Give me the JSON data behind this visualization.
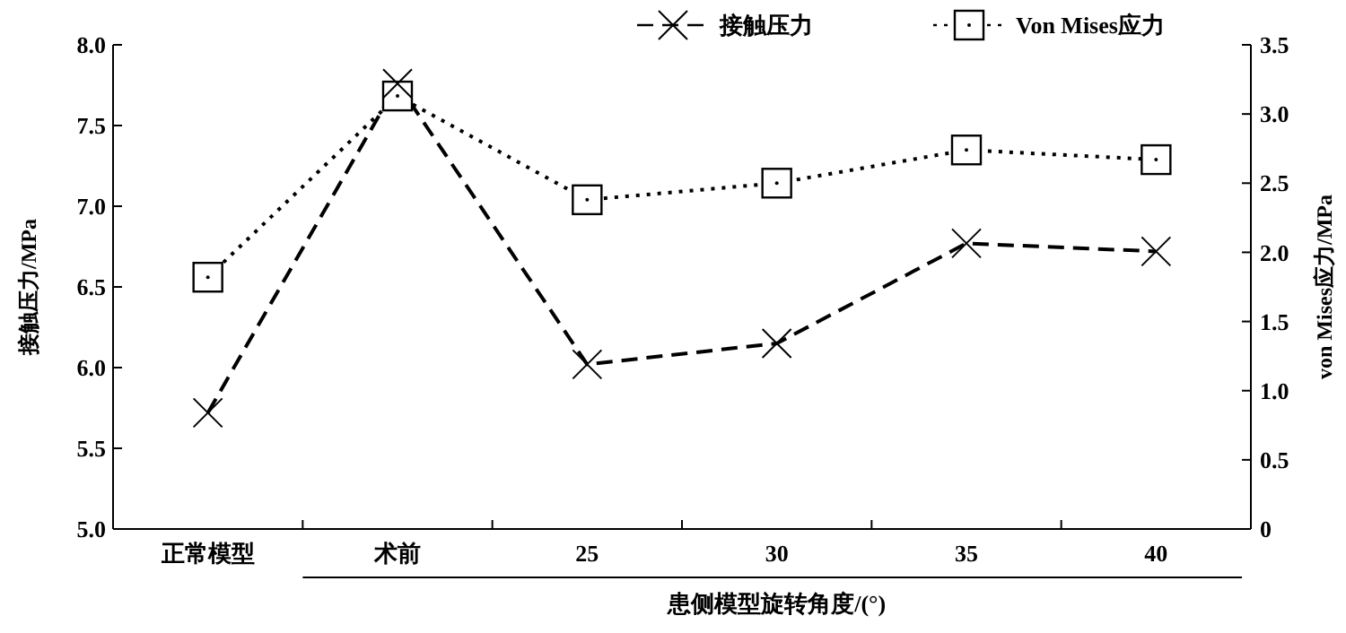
{
  "chart_data": {
    "type": "line",
    "xlabel": "患侧模型旋转角度/(°)",
    "ylabel": "接触压力/MPa",
    "y2label": "von Mises应力/MPa",
    "categories": [
      "正常模型",
      "术前",
      "25",
      "30",
      "35",
      "40"
    ],
    "series": [
      {
        "name": "接触压力",
        "color": "#000000",
        "marker": "cross",
        "line_style": "dashed",
        "values": [
          5.72,
          7.76,
          6.02,
          6.15,
          6.77,
          6.72
        ]
      },
      {
        "name": "Von Mises应力",
        "color": "#000000",
        "marker": "square",
        "line_style": "dotted",
        "axis": "y2",
        "values": [
          1.82,
          3.13,
          2.38,
          2.5,
          2.74,
          2.67
        ]
      }
    ],
    "ylim": [
      5,
      8
    ],
    "yticks": [
      {
        "value": 5,
        "label": "5.0"
      },
      5.5,
      {
        "value": 6,
        "label": "6.0"
      },
      6.5,
      {
        "value": 7,
        "label": "7.0"
      },
      7.5,
      {
        "value": 8,
        "label": "8.0"
      }
    ],
    "y2lim": [
      0,
      3.5
    ],
    "y2ticks": [
      0,
      0.5,
      {
        "value": 1,
        "label": "1.0"
      },
      1.5,
      {
        "value": 2,
        "label": "2.0"
      },
      2.5,
      {
        "value": 3,
        "label": "3.0"
      },
      3.5
    ],
    "grid": false,
    "legend": "top right"
  }
}
